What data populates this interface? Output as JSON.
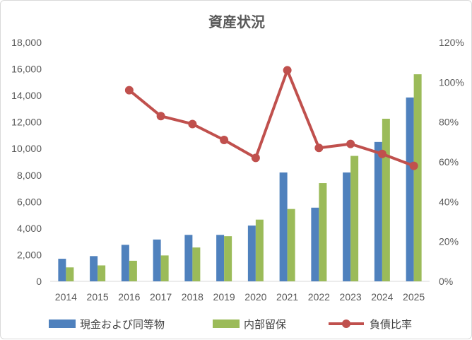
{
  "chart_data": {
    "type": "bar",
    "title": "資産状況",
    "categories": [
      "2014",
      "2015",
      "2016",
      "2017",
      "2018",
      "2019",
      "2020",
      "2021",
      "2022",
      "2023",
      "2024",
      "2025"
    ],
    "series": [
      {
        "name": "現金および同等物",
        "kind": "bar",
        "axis": "left",
        "color": "#4f81bd",
        "values": [
          1700,
          1900,
          2750,
          3150,
          3500,
          3500,
          4200,
          8200,
          5550,
          8200,
          10500,
          13850
        ]
      },
      {
        "name": "内部留保",
        "kind": "bar",
        "axis": "left",
        "color": "#9bbb59",
        "values": [
          1050,
          1200,
          1550,
          1950,
          2550,
          3400,
          4650,
          5450,
          7400,
          9450,
          12250,
          15600
        ]
      },
      {
        "name": "負債比率",
        "kind": "line",
        "axis": "right",
        "color": "#c0504d",
        "values": [
          null,
          null,
          0.96,
          0.83,
          0.79,
          0.71,
          0.62,
          1.06,
          0.67,
          0.69,
          0.64,
          0.58
        ]
      }
    ],
    "ylim": [
      0,
      18000
    ],
    "y_ticks": [
      "0",
      "2,000",
      "4,000",
      "6,000",
      "8,000",
      "10,000",
      "12,000",
      "14,000",
      "16,000",
      "18,000"
    ],
    "y2lim": [
      0,
      1.2
    ],
    "y2_ticks": [
      "0%",
      "20%",
      "40%",
      "60%",
      "80%",
      "100%",
      "120%"
    ],
    "grid": false,
    "legend_position": "bottom"
  }
}
